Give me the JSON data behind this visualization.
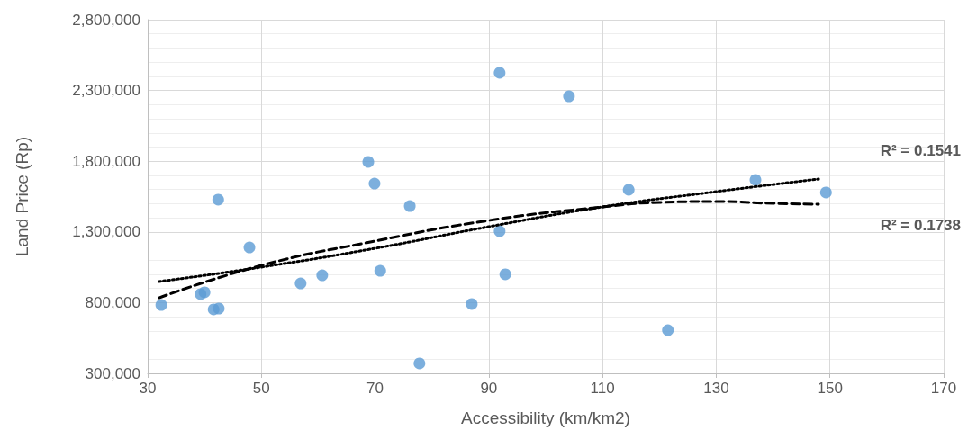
{
  "chart_data": {
    "type": "scatter",
    "xlabel": "Accessibility (km/km2)",
    "ylabel": "Land Price (Rp)",
    "xlim": [
      30,
      170
    ],
    "xticks": [
      30,
      50,
      70,
      90,
      110,
      130,
      150,
      170
    ],
    "ylim": [
      300000,
      2800000
    ],
    "yticks": [
      {
        "value": 300000,
        "label": "300,000"
      },
      {
        "value": 800000,
        "label": "800,000"
      },
      {
        "value": 1300000,
        "label": "1,300,000"
      },
      {
        "value": 1800000,
        "label": "1,800,000"
      },
      {
        "value": 2300000,
        "label": "2,300,000"
      },
      {
        "value": 2800000,
        "label": "2,800,000"
      }
    ],
    "grid": true,
    "marker": "circle",
    "series": [
      {
        "type": "scatter",
        "color": "#5b9bd5",
        "x": [
          32.4,
          39.3,
          40.0,
          41.6,
          42.5,
          42.4,
          47.9,
          56.9,
          60.7,
          68.8,
          69.9,
          70.9,
          76.1,
          77.8,
          87.0,
          91.9,
          91.9,
          92.9,
          104.1,
          114.6,
          121.5,
          136.9,
          149.3
        ],
        "values": [
          783000,
          860000,
          873000,
          752000,
          758000,
          1528000,
          1190000,
          936000,
          993000,
          1795000,
          1642000,
          1025000,
          1483000,
          370000,
          790000,
          2425000,
          1305000,
          1000000,
          2259000,
          1598000,
          605000,
          1668000,
          1579000
        ]
      },
      {
        "type": "line",
        "color": "#000000",
        "line_style": "dotted",
        "marker": "none",
        "x": [
          32,
          50,
          70,
          90,
          110,
          130,
          148
        ],
        "values": [
          949000,
          1051000,
          1184000,
          1337000,
          1477000,
          1585000,
          1674000
        ]
      },
      {
        "type": "line",
        "color": "#000000",
        "line_style": "dashed",
        "marker": "none",
        "x": [
          32,
          50,
          70,
          90,
          110,
          120,
          130,
          140,
          148
        ],
        "values": [
          834000,
          1063000,
          1235000,
          1381000,
          1477000,
          1509000,
          1515000,
          1502000,
          1496000
        ]
      }
    ],
    "annotations": [
      "R² = 0.1541",
      "R² = 0.1738"
    ]
  }
}
